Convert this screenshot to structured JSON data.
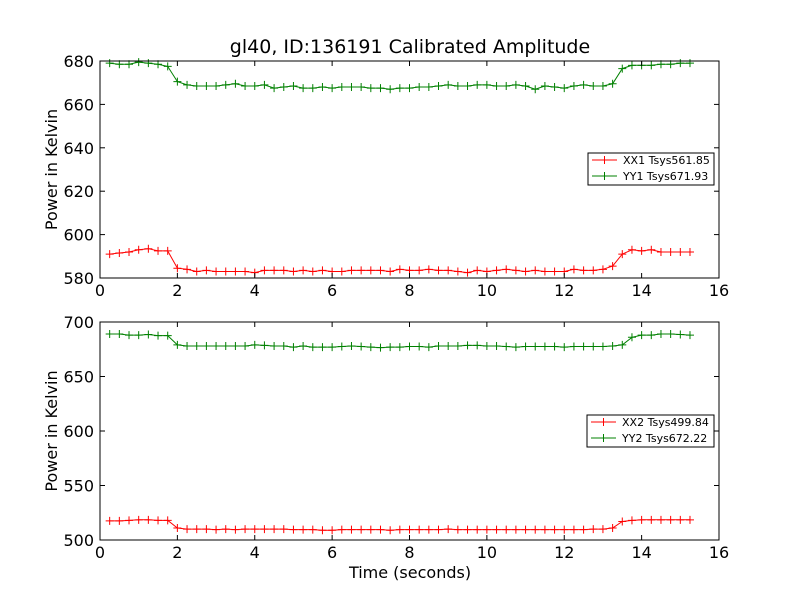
{
  "chart_data": [
    {
      "type": "line",
      "title": "gl40, ID:136191 Calibrated Amplitude",
      "xlabel": "",
      "ylabel": "Power in Kelvin",
      "xlim": [
        0,
        16
      ],
      "ylim": [
        580,
        680
      ],
      "xticks": [
        0,
        2,
        4,
        6,
        8,
        10,
        12,
        14,
        16
      ],
      "yticks": [
        580,
        600,
        620,
        640,
        660,
        680
      ],
      "legend_position": "center-right",
      "grid": false,
      "x": [
        0.25,
        0.5,
        0.75,
        1.0,
        1.25,
        1.5,
        1.75,
        2.0,
        2.25,
        2.5,
        2.75,
        3.0,
        3.25,
        3.5,
        3.75,
        4.0,
        4.25,
        4.5,
        4.75,
        5.0,
        5.25,
        5.5,
        5.75,
        6.0,
        6.25,
        6.5,
        6.75,
        7.0,
        7.25,
        7.5,
        7.75,
        8.0,
        8.25,
        8.5,
        8.75,
        9.0,
        9.25,
        9.5,
        9.75,
        10.0,
        10.25,
        10.5,
        10.75,
        11.0,
        11.25,
        11.5,
        11.75,
        12.0,
        12.25,
        12.5,
        12.75,
        13.0,
        13.25,
        13.5,
        13.75,
        14.0,
        14.25,
        14.5,
        14.75,
        15.0,
        15.25
      ],
      "series": [
        {
          "name": "XX1 Tsys561.85",
          "color": "#ff0000",
          "values": [
            591,
            591.5,
            592,
            593,
            593.5,
            592.5,
            592.5,
            584.5,
            584,
            583,
            583.5,
            583,
            583,
            583,
            583,
            582.5,
            583.5,
            583.5,
            583.5,
            583,
            583.5,
            583,
            583.5,
            583,
            583,
            583.5,
            583.5,
            583.5,
            583.5,
            583,
            584,
            583.5,
            583.5,
            584,
            583.5,
            583.5,
            583,
            582.5,
            583.5,
            583,
            583.5,
            584,
            583.5,
            583,
            583.5,
            583,
            583,
            583,
            584,
            583.5,
            583.5,
            584,
            585.5,
            591,
            593,
            592.5,
            593,
            592,
            592,
            592,
            592
          ]
        },
        {
          "name": "YY1 Tsys671.93",
          "color": "#008000",
          "values": [
            679,
            678.5,
            678.5,
            679.5,
            679,
            678.5,
            677.5,
            670.5,
            669,
            668.5,
            668.5,
            668.5,
            669,
            669.5,
            668.5,
            668.5,
            669,
            667.5,
            668,
            668.5,
            667.5,
            667.5,
            668,
            667.5,
            668,
            668,
            668,
            667.5,
            667.5,
            667,
            667.5,
            667.5,
            668,
            668,
            668.5,
            669,
            668.5,
            668.5,
            669,
            669,
            668.5,
            668.5,
            669,
            668.5,
            667,
            668.5,
            668,
            667.5,
            668.5,
            669,
            668.5,
            668.5,
            669.5,
            676.5,
            678,
            678,
            678,
            678.5,
            678.5,
            679,
            679
          ]
        }
      ]
    },
    {
      "type": "line",
      "title": "",
      "xlabel": "Time (seconds)",
      "ylabel": "Power in Kelvin",
      "xlim": [
        0,
        16
      ],
      "ylim": [
        500,
        700
      ],
      "xticks": [
        0,
        2,
        4,
        6,
        8,
        10,
        12,
        14,
        16
      ],
      "yticks": [
        500,
        550,
        600,
        650,
        700
      ],
      "legend_position": "center-right",
      "grid": false,
      "x": [
        0.25,
        0.5,
        0.75,
        1.0,
        1.25,
        1.5,
        1.75,
        2.0,
        2.25,
        2.5,
        2.75,
        3.0,
        3.25,
        3.5,
        3.75,
        4.0,
        4.25,
        4.5,
        4.75,
        5.0,
        5.25,
        5.5,
        5.75,
        6.0,
        6.25,
        6.5,
        6.75,
        7.0,
        7.25,
        7.5,
        7.75,
        8.0,
        8.25,
        8.5,
        8.75,
        9.0,
        9.25,
        9.5,
        9.75,
        10.0,
        10.25,
        10.5,
        10.75,
        11.0,
        11.25,
        11.5,
        11.75,
        12.0,
        12.25,
        12.5,
        12.75,
        13.0,
        13.25,
        13.5,
        13.75,
        14.0,
        14.25,
        14.5,
        14.75,
        15.0,
        15.25
      ],
      "series": [
        {
          "name": "XX2 Tsys499.84",
          "color": "#ff0000",
          "values": [
            517.5,
            517.5,
            518,
            518.5,
            518.5,
            518,
            518,
            511,
            510,
            510,
            510,
            509.5,
            510,
            509.5,
            510,
            510,
            510,
            510,
            510,
            509.5,
            509.5,
            509.5,
            509,
            509,
            509.5,
            509.5,
            509.5,
            509.5,
            509.5,
            509,
            509.5,
            509.5,
            509.5,
            509.5,
            509.5,
            510,
            509.5,
            509.5,
            509.5,
            509.5,
            509.5,
            509.5,
            509.5,
            509.5,
            509.5,
            509.5,
            509.5,
            509.5,
            509.5,
            509.5,
            510,
            510,
            511,
            517,
            518,
            518.5,
            518.5,
            518.5,
            518.5,
            518.5,
            518.5
          ]
        },
        {
          "name": "YY2 Tsys672.22",
          "color": "#008000",
          "values": [
            689,
            689,
            688,
            688,
            688.5,
            687.5,
            687.5,
            679,
            678,
            678,
            678,
            678,
            678,
            678,
            678,
            679,
            678.5,
            678,
            678,
            677,
            678,
            677,
            677,
            677,
            677.5,
            678,
            677.5,
            677,
            676.5,
            677,
            677,
            677.5,
            677.5,
            677,
            678,
            678,
            678,
            678.5,
            678.5,
            678,
            678,
            677.5,
            677,
            677.5,
            677.5,
            677.5,
            677.5,
            677,
            677.5,
            677.5,
            677.5,
            677.5,
            678,
            679,
            686,
            688,
            688,
            689,
            689,
            688.5,
            688
          ]
        }
      ]
    }
  ]
}
